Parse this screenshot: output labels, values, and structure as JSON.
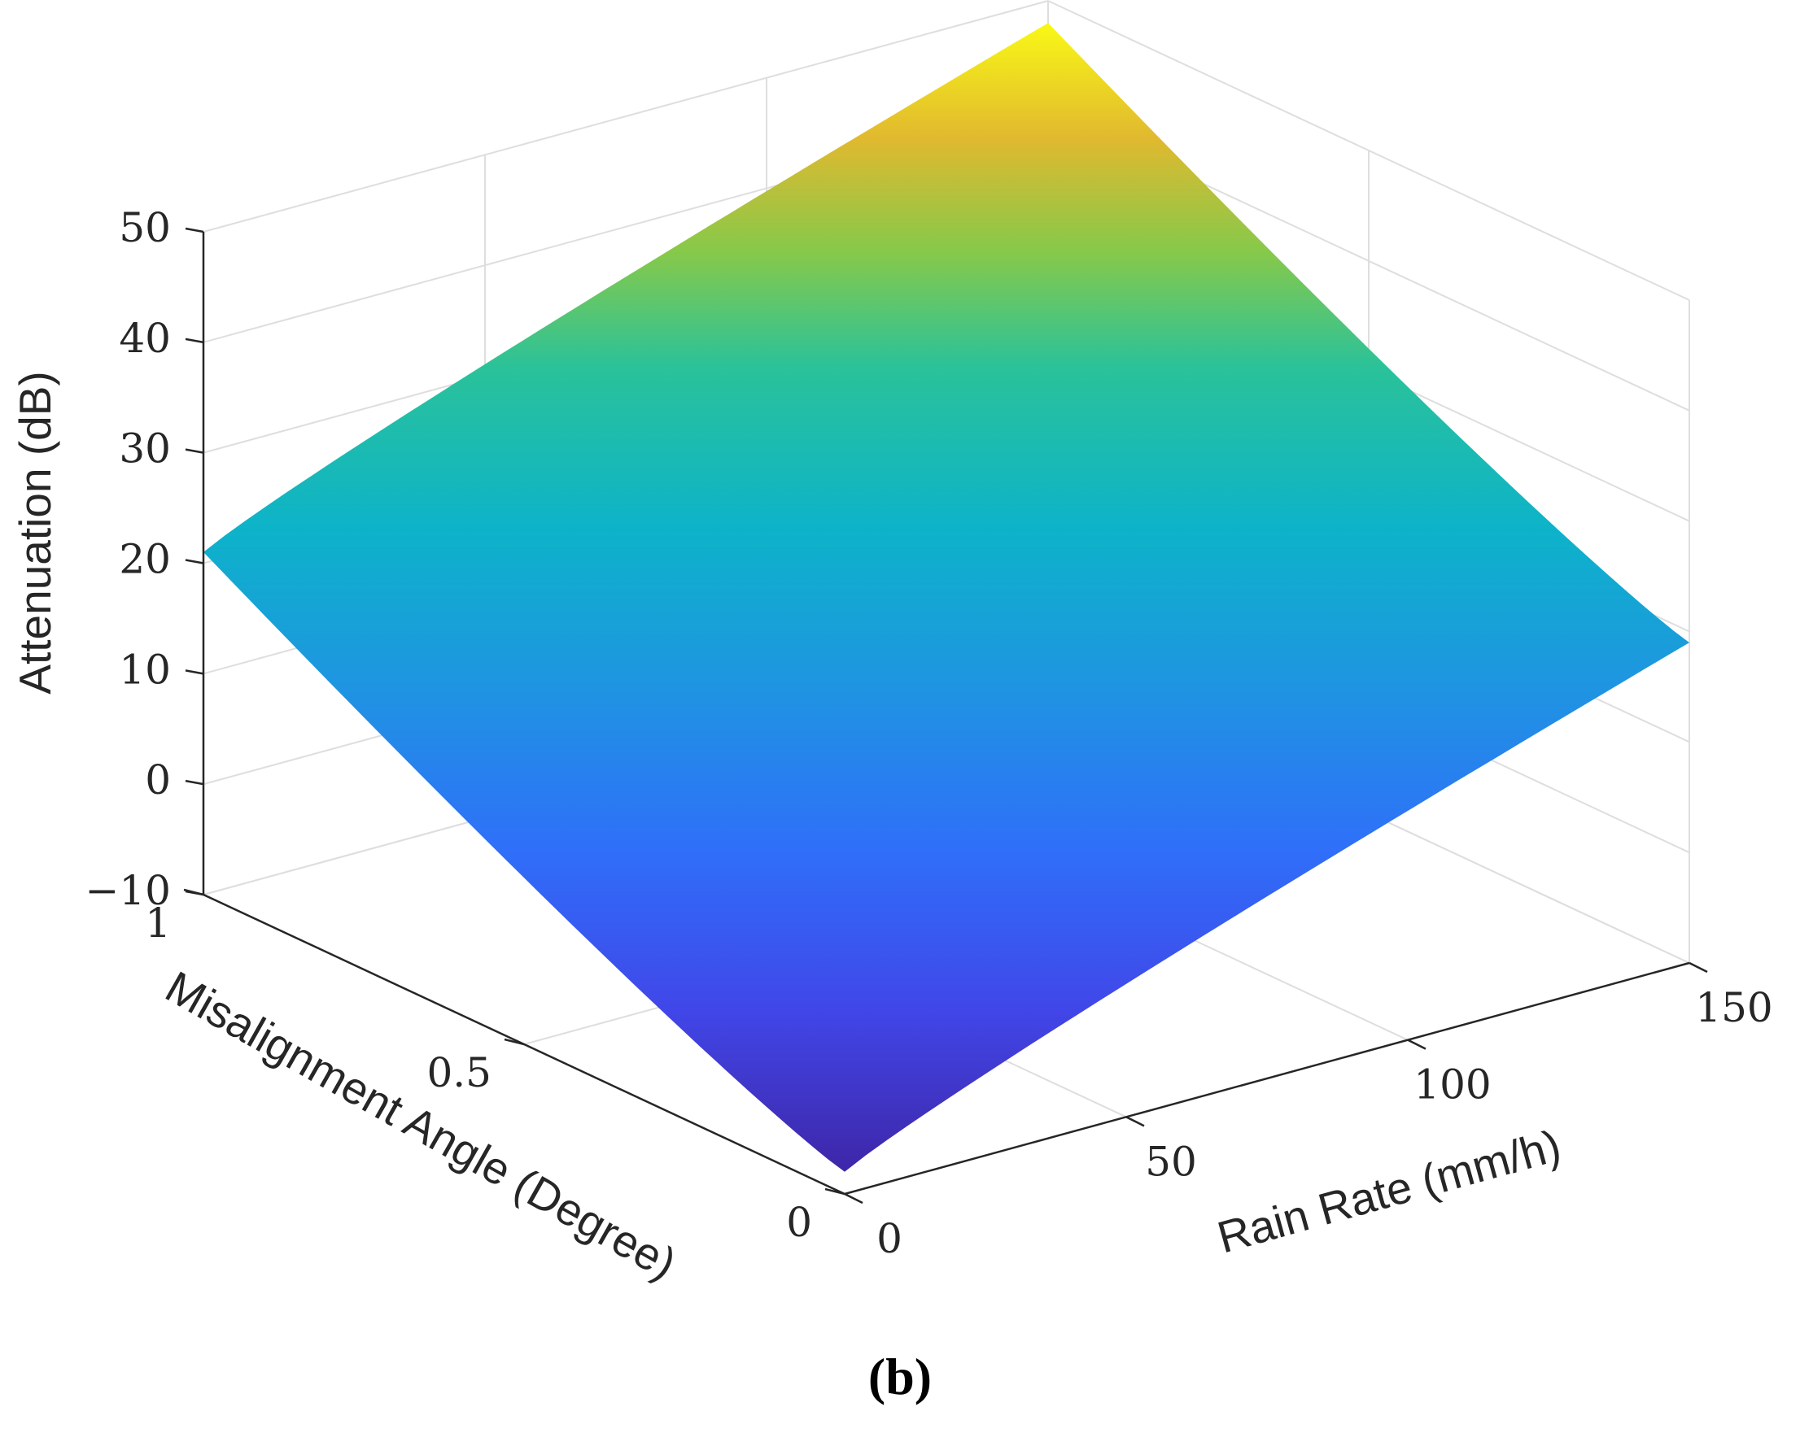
{
  "chart_data": {
    "type": "surface",
    "title": "",
    "caption": "(b)",
    "xlabel": "Rain Rate (mm/h)",
    "ylabel": "Misalignment Angle (Degree)",
    "zlabel": "Attenuation (dB)",
    "xlim": [
      0,
      150
    ],
    "ylim": [
      0,
      1
    ],
    "zlim": [
      -10,
      50
    ],
    "x_ticks": [
      0,
      50,
      100,
      150
    ],
    "y_ticks": [
      0,
      0.5,
      1
    ],
    "z_ticks": [
      -10,
      0,
      10,
      20,
      30,
      40,
      50
    ],
    "x_tick_labels": [
      "0",
      "50",
      "100",
      "150"
    ],
    "y_tick_labels": [
      "0",
      "0.5",
      "1"
    ],
    "z_tick_labels": [
      "−10",
      "0",
      "10",
      "20",
      "30",
      "40",
      "50"
    ],
    "grid": true,
    "colormap": "parula",
    "corners": [
      {
        "rain_rate": 0,
        "angle": 0,
        "attenuation": -8
      },
      {
        "rain_rate": 150,
        "angle": 0,
        "attenuation": 19
      },
      {
        "rain_rate": 0,
        "angle": 1,
        "attenuation": 21
      },
      {
        "rain_rate": 150,
        "angle": 1,
        "attenuation": 48
      }
    ]
  }
}
